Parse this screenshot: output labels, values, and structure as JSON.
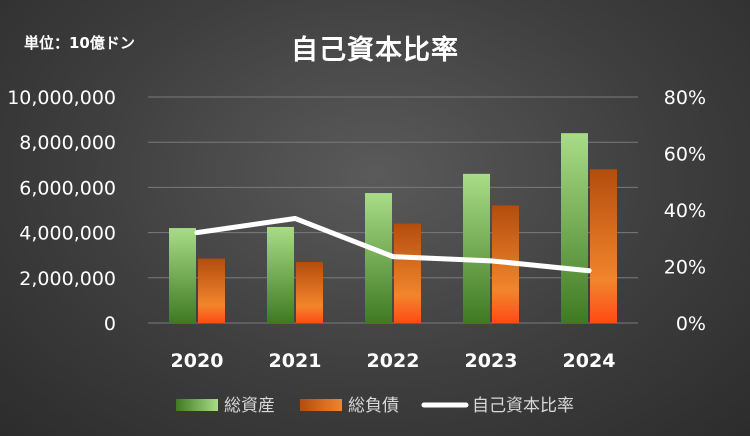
{
  "chart_data": {
    "type": "bar",
    "title": "自己資本比率",
    "unit_label": "単位：10億ドン",
    "categories": [
      "2020",
      "2021",
      "2022",
      "2023",
      "2024"
    ],
    "series": [
      {
        "name": "総資産",
        "type": "bar",
        "axis": "left",
        "values": [
          4200000,
          4250000,
          5750000,
          6600000,
          8400000
        ]
      },
      {
        "name": "総負債",
        "type": "bar",
        "axis": "left",
        "values": [
          2850000,
          2700000,
          4400000,
          5200000,
          6800000
        ]
      },
      {
        "name": "自己資本比率",
        "type": "line",
        "axis": "right",
        "values": [
          0.32,
          0.37,
          0.235,
          0.22,
          0.185
        ]
      }
    ],
    "y_left": {
      "ylim": [
        0,
        10000000
      ],
      "ticks": [
        0,
        2000000,
        4000000,
        6000000,
        8000000,
        10000000
      ],
      "tick_labels": [
        "0",
        "2,000,000",
        "4,000,000",
        "6,000,000",
        "8,000,000",
        "10,000,000"
      ]
    },
    "y_right": {
      "ylim": [
        0,
        0.8
      ],
      "ticks": [
        0,
        0.2,
        0.4,
        0.6,
        0.8
      ],
      "tick_labels": [
        "0%",
        "20%",
        "40%",
        "60%",
        "80%"
      ]
    },
    "grid": true,
    "legend_position": "bottom",
    "colors": {
      "asset_light": "#a9dc87",
      "asset_dark": "#3f7a22",
      "liab_dark": "#b24d0e",
      "liab_light": "#f2852c",
      "liab_bottom": "#ff4a16",
      "line": "#ffffff",
      "grid": "#7a7a7a"
    }
  }
}
